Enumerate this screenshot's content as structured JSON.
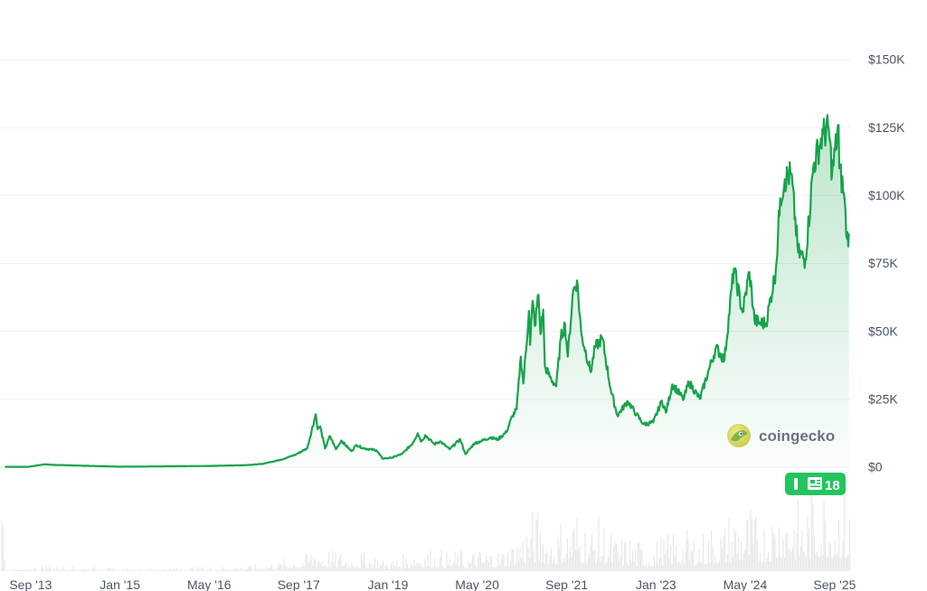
{
  "chart_data": {
    "type": "area",
    "x_unit": "date",
    "y_unit": "USD",
    "ylim": [
      0,
      150000
    ],
    "y_ticks": [
      {
        "value": 0,
        "label": "$0"
      },
      {
        "value": 25000,
        "label": "$25K"
      },
      {
        "value": 50000,
        "label": "$50K"
      },
      {
        "value": 75000,
        "label": "$75K"
      },
      {
        "value": 100000,
        "label": "$100K"
      },
      {
        "value": 125000,
        "label": "$125K"
      },
      {
        "value": 150000,
        "label": "$150K"
      }
    ],
    "x_ticks": [
      {
        "date": "2013-09",
        "label": "Sep '13"
      },
      {
        "date": "2015-01",
        "label": "Jan '15"
      },
      {
        "date": "2016-05",
        "label": "May '16"
      },
      {
        "date": "2017-09",
        "label": "Sep '17"
      },
      {
        "date": "2019-01",
        "label": "Jan '19"
      },
      {
        "date": "2020-05",
        "label": "May '20"
      },
      {
        "date": "2021-09",
        "label": "Sep '21"
      },
      {
        "date": "2023-01",
        "label": "Jan '23"
      },
      {
        "date": "2024-05",
        "label": "May '24"
      },
      {
        "date": "2025-09",
        "label": "Sep '25"
      }
    ],
    "grid": true,
    "line_color": "#16a34a",
    "fill_color": "#16a34a",
    "volume_color": "#d1d5db",
    "series": [
      {
        "values": [
          [
            "2013-04-28",
            135
          ],
          [
            "2013-09-01",
            130
          ],
          [
            "2013-12-04",
            1100
          ],
          [
            "2014-01-15",
            850
          ],
          [
            "2014-06-01",
            600
          ],
          [
            "2015-01-14",
            180
          ],
          [
            "2015-06-01",
            230
          ],
          [
            "2015-12-01",
            380
          ],
          [
            "2016-05-01",
            450
          ],
          [
            "2016-12-01",
            750
          ],
          [
            "2017-03-01",
            1200
          ],
          [
            "2017-06-12",
            2800
          ],
          [
            "2017-09-01",
            4700
          ],
          [
            "2017-11-01",
            7000
          ],
          [
            "2017-12-17",
            19500
          ],
          [
            "2017-12-28",
            14000
          ],
          [
            "2018-01-10",
            15000
          ],
          [
            "2018-02-06",
            6900
          ],
          [
            "2018-03-05",
            11500
          ],
          [
            "2018-04-06",
            6600
          ],
          [
            "2018-05-05",
            9800
          ],
          [
            "2018-06-29",
            5900
          ],
          [
            "2018-07-27",
            8200
          ],
          [
            "2018-09-01",
            7000
          ],
          [
            "2018-11-14",
            6200
          ],
          [
            "2018-12-15",
            3200
          ],
          [
            "2019-02-01",
            3450
          ],
          [
            "2019-04-02",
            4900
          ],
          [
            "2019-05-28",
            8700
          ],
          [
            "2019-06-26",
            12500
          ],
          [
            "2019-07-16",
            9400
          ],
          [
            "2019-08-06",
            11800
          ],
          [
            "2019-09-24",
            8500
          ],
          [
            "2019-10-26",
            9500
          ],
          [
            "2019-12-17",
            6600
          ],
          [
            "2020-02-12",
            10300
          ],
          [
            "2020-03-12",
            4800
          ],
          [
            "2020-04-30",
            8800
          ],
          [
            "2020-06-01",
            9500
          ],
          [
            "2020-07-27",
            11000
          ],
          [
            "2020-09-04",
            10200
          ],
          [
            "2020-10-21",
            12900
          ],
          [
            "2020-11-24",
            19000
          ],
          [
            "2020-12-16",
            21300
          ],
          [
            "2021-01-08",
            40700
          ],
          [
            "2021-01-22",
            30800
          ],
          [
            "2021-02-21",
            57500
          ],
          [
            "2021-02-28",
            45000
          ],
          [
            "2021-03-13",
            61200
          ],
          [
            "2021-03-25",
            52000
          ],
          [
            "2021-04-14",
            63500
          ],
          [
            "2021-04-25",
            49000
          ],
          [
            "2021-05-10",
            58000
          ],
          [
            "2021-05-19",
            37000
          ],
          [
            "2021-06-22",
            32500
          ],
          [
            "2021-07-20",
            29800
          ],
          [
            "2021-08-14",
            47500
          ],
          [
            "2021-09-06",
            52600
          ],
          [
            "2021-09-21",
            40700
          ],
          [
            "2021-10-20",
            65000
          ],
          [
            "2021-11-10",
            68700
          ],
          [
            "2021-12-04",
            49000
          ],
          [
            "2022-01-24",
            35000
          ],
          [
            "2022-02-16",
            44000
          ],
          [
            "2022-03-28",
            47500
          ],
          [
            "2022-05-12",
            29000
          ],
          [
            "2022-06-18",
            19000
          ],
          [
            "2022-08-14",
            24300
          ],
          [
            "2022-09-30",
            19400
          ],
          [
            "2022-11-09",
            15800
          ],
          [
            "2022-12-31",
            16500
          ],
          [
            "2023-02-16",
            24500
          ],
          [
            "2023-03-10",
            20100
          ],
          [
            "2023-04-14",
            30500
          ],
          [
            "2023-06-15",
            25000
          ],
          [
            "2023-07-13",
            31400
          ],
          [
            "2023-09-11",
            25100
          ],
          [
            "2023-10-24",
            34500
          ],
          [
            "2023-12-08",
            44000
          ],
          [
            "2024-01-23",
            39500
          ],
          [
            "2024-03-14",
            73100
          ],
          [
            "2024-05-01",
            57000
          ],
          [
            "2024-06-07",
            71800
          ],
          [
            "2024-07-05",
            54000
          ],
          [
            "2024-08-05",
            53000
          ],
          [
            "2024-09-06",
            53000
          ],
          [
            "2024-10-29",
            72500
          ],
          [
            "2024-11-22",
            99000
          ],
          [
            "2024-12-17",
            106000
          ],
          [
            "2025-01-20",
            108000
          ],
          [
            "2025-02-28",
            79000
          ],
          [
            "2025-04-08",
            76300
          ],
          [
            "2025-05-22",
            111000
          ],
          [
            "2025-07-14",
            122800
          ],
          [
            "2025-08-14",
            124100
          ],
          [
            "2025-09-01",
            108000
          ],
          [
            "2025-10-06",
            126000
          ],
          [
            "2025-10-10",
            110000
          ],
          [
            "2025-11-04",
            101000
          ],
          [
            "2025-11-21",
            84000
          ],
          [
            "2025-12-01",
            86000
          ]
        ]
      }
    ]
  },
  "brand": {
    "name": "coingecko"
  },
  "news_badge": {
    "count": "18"
  }
}
